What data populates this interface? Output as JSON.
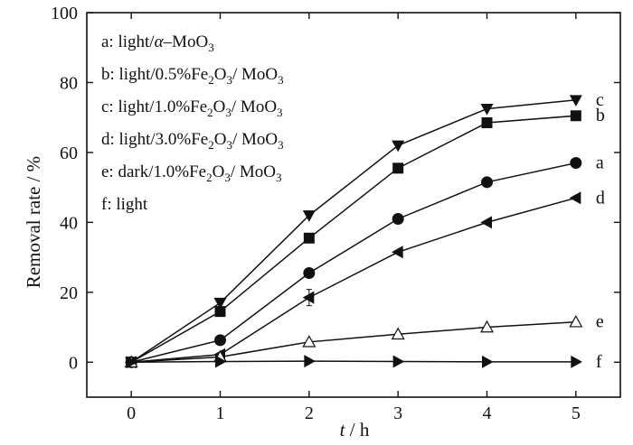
{
  "chart_data": {
    "type": "line",
    "xlabel_italic": "t",
    "xlabel_unit": " / h",
    "ylabel": "Removal rate / %",
    "xlim": [
      -0.5,
      5.5
    ],
    "ylim": [
      -10,
      100
    ],
    "xticks": [
      0,
      1,
      2,
      3,
      4,
      5
    ],
    "yticks": [
      0,
      20,
      40,
      60,
      80,
      100
    ],
    "x": [
      0,
      1,
      2,
      3,
      4,
      5
    ],
    "legend_placement": "top-left",
    "legend": [
      {
        "prefix": "a: light/",
        "alpha": "α",
        "rest": "–MoO",
        "sub": "3",
        "tail": ""
      },
      {
        "prefix": "b: light/0.5%Fe",
        "sub1": "2",
        "mid": "O",
        "sub2": "3",
        "after": "/ MoO",
        "sub3": "3"
      },
      {
        "prefix": "c: light/1.0%Fe",
        "sub1": "2",
        "mid": "O",
        "sub2": "3",
        "after": "/ MoO",
        "sub3": "3"
      },
      {
        "prefix": "d: light/3.0%Fe",
        "sub1": "2",
        "mid": "O",
        "sub2": "3",
        "after": "/ MoO",
        "sub3": "3"
      },
      {
        "prefix": "e: dark/1.0%Fe",
        "sub1": "2",
        "mid": "O",
        "sub2": "3",
        "after": "/ MoO",
        "sub3": "3"
      },
      {
        "prefix": "f: light"
      }
    ],
    "series": [
      {
        "name": "c",
        "marker": "triangle-down",
        "values": [
          0,
          17,
          42,
          62,
          72.5,
          75
        ]
      },
      {
        "name": "b",
        "marker": "square",
        "values": [
          0,
          14.5,
          35.5,
          55.5,
          68.5,
          70.5
        ]
      },
      {
        "name": "a",
        "marker": "circle",
        "values": [
          0,
          6.3,
          25.5,
          41,
          51.5,
          57
        ]
      },
      {
        "name": "d",
        "marker": "triangle-left",
        "values": [
          0,
          2.2,
          18.5,
          31.5,
          40,
          47
        ]
      },
      {
        "name": "e",
        "marker": "triangle-up-open",
        "values": [
          0,
          1.5,
          5.8,
          8,
          10,
          11.5
        ]
      },
      {
        "name": "f",
        "marker": "triangle-right",
        "values": [
          0,
          0.2,
          0.3,
          0.2,
          0.1,
          0.1
        ]
      }
    ],
    "end_labels": [
      "c",
      "b",
      "a",
      "d",
      "e",
      "f"
    ]
  }
}
